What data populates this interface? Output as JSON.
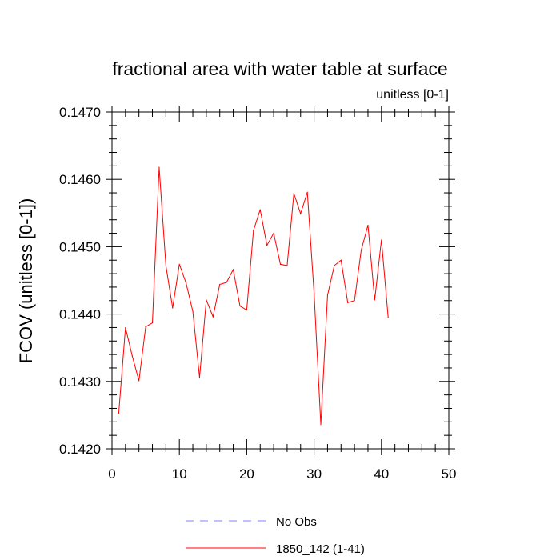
{
  "chart_data": {
    "type": "line",
    "title": "fractional area with water table at surface",
    "subtitle": "unitless [0-1]",
    "ylabel": "FCOV  (unitless [0-1])",
    "xlabel": "",
    "xlim": [
      0,
      50
    ],
    "ylim": [
      0.142,
      0.147
    ],
    "x_ticks": [
      "0",
      "10",
      "20",
      "30",
      "40",
      "50"
    ],
    "y_ticks": [
      "0.1420",
      "0.1430",
      "0.1440",
      "0.1450",
      "0.1460",
      "0.1470"
    ],
    "grid": false,
    "legend_position": "bottom-center",
    "legend": [
      {
        "label": "No Obs",
        "color": "#8080ff",
        "style": "dashed"
      },
      {
        "label": "1850_142 (1-41)",
        "color": "#ff0000",
        "style": "solid"
      }
    ],
    "series": [
      {
        "name": "1850_142 (1-41)",
        "color": "#ff0000",
        "x": [
          1,
          2,
          3,
          4,
          5,
          6,
          7,
          8,
          9,
          10,
          11,
          12,
          13,
          14,
          15,
          16,
          17,
          18,
          19,
          20,
          21,
          22,
          23,
          24,
          25,
          26,
          27,
          28,
          29,
          30,
          31,
          32,
          33,
          34,
          35,
          36,
          37,
          38,
          39,
          40,
          41
        ],
        "values": [
          0.14253,
          0.1438,
          0.14338,
          0.14301,
          0.14381,
          0.14387,
          0.14618,
          0.14472,
          0.14409,
          0.14474,
          0.14446,
          0.14404,
          0.14306,
          0.14421,
          0.14396,
          0.14444,
          0.14447,
          0.14466,
          0.14412,
          0.14406,
          0.14524,
          0.14555,
          0.14502,
          0.1452,
          0.14474,
          0.14472,
          0.14579,
          0.14549,
          0.14581,
          0.14431,
          0.14236,
          0.14428,
          0.14472,
          0.1448,
          0.14417,
          0.1442,
          0.14495,
          0.14532,
          0.14421,
          0.1451,
          0.14395
        ]
      }
    ]
  }
}
